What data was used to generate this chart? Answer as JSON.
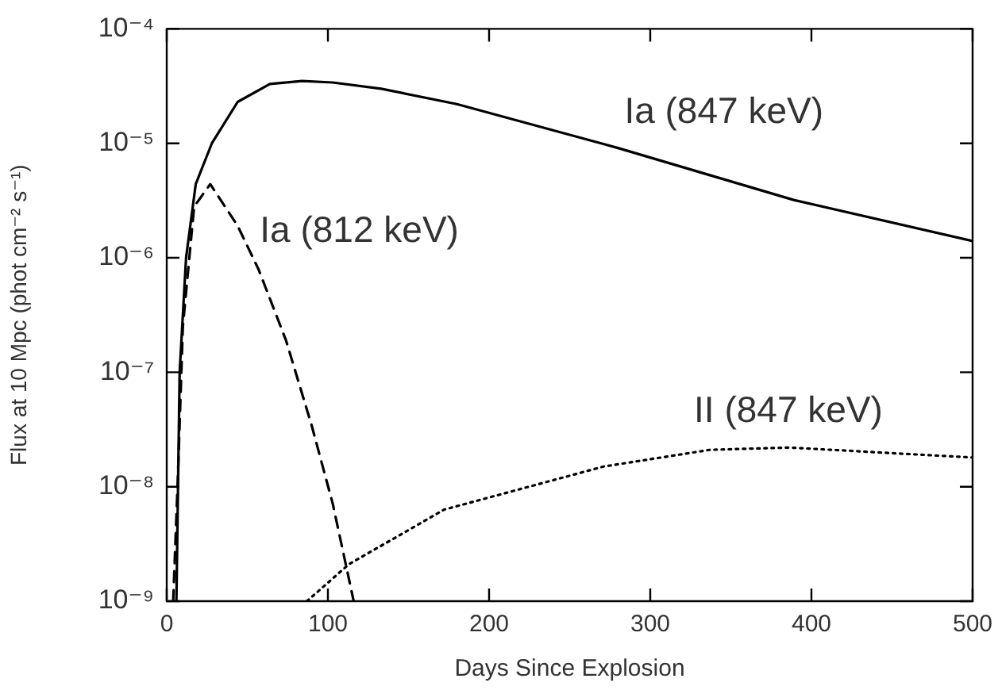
{
  "chart_data": {
    "type": "line",
    "xlabel": "Days Since Explosion",
    "ylabel": "Flux at 10 Mpc (phot cm⁻² s⁻¹)",
    "log": "y",
    "grid": false,
    "legend": false,
    "marker": "none",
    "xlim": [
      0,
      500
    ],
    "xticks": [
      0,
      100,
      200,
      300,
      400,
      500
    ],
    "ylim": [
      1e-09,
      0.0001
    ],
    "yticks": [
      {
        "value": 1e-09,
        "label": "10⁻⁹"
      },
      {
        "value": 1e-08,
        "label": "10⁻⁸"
      },
      {
        "value": 1e-07,
        "label": "10⁻⁷"
      },
      {
        "value": 1e-06,
        "label": "10⁻⁶"
      },
      {
        "value": 1e-05,
        "label": "10⁻⁵"
      },
      {
        "value": 0.0001,
        "label": "10⁻⁴"
      }
    ],
    "series": [
      {
        "name": "Ia (847 keV)",
        "color": "#000000",
        "line_style": "solid",
        "x": [
          6,
          8,
          12,
          18,
          28,
          44,
          64,
          84,
          103,
          133,
          180,
          280,
          389,
          500
        ],
        "values": [
          1e-09,
          1e-07,
          1e-06,
          4.4e-06,
          1e-05,
          2.3e-05,
          3.3e-05,
          3.5e-05,
          3.4e-05,
          3e-05,
          2.2e-05,
          9.1e-06,
          3.2e-06,
          1.4e-06
        ]
      },
      {
        "name": "Ia (812 keV)",
        "color": "#000000",
        "line_style": "dashed",
        "x": [
          4,
          7,
          10,
          17,
          27,
          44,
          57,
          74,
          90,
          103,
          116
        ],
        "values": [
          1e-09,
          1.3e-08,
          2.5e-07,
          2.8e-06,
          4.4e-06,
          1.9e-06,
          7.9e-07,
          1.9e-07,
          3.4e-08,
          7.1e-09,
          1e-09
        ]
      },
      {
        "name": "II (847 keV)",
        "color": "#000000",
        "line_style": "dotted",
        "x": [
          87,
          113,
          172,
          271,
          337,
          386,
          500
        ],
        "values": [
          1e-09,
          2.1e-09,
          6.3e-09,
          1.5e-08,
          2.1e-08,
          2.2e-08,
          1.8e-08
        ]
      }
    ]
  }
}
